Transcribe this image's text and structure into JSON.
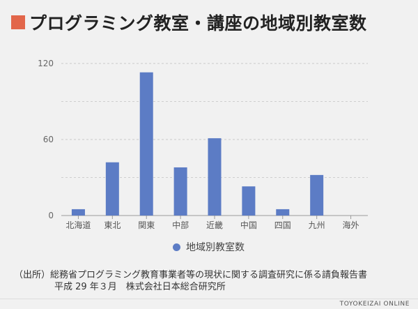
{
  "title": "プログラミング教室・講座の地域別教室数",
  "accent": "#e2664a",
  "bar_color": "#5c7cc5",
  "chart_data": {
    "type": "bar",
    "title": "プログラミング教室・講座の地域別教室数",
    "categories": [
      "北海道",
      "東北",
      "関東",
      "中部",
      "近畿",
      "中国",
      "四国",
      "九州",
      "海外"
    ],
    "series": [
      {
        "name": "地域別教室数",
        "values": [
          5,
          42,
          113,
          38,
          61,
          23,
          5,
          32,
          0
        ]
      }
    ],
    "yticks": [
      0,
      60,
      120
    ],
    "ylim": [
      0,
      120
    ],
    "grid": true,
    "legend": "bottom"
  },
  "legend_label": "地域別教室数",
  "source_line1": "（出所）総務省プログラミング教育事業者等の現状に関する調査研究に係る請負報告書",
  "source_line2": "平成 29 年３月　株式会社日本総合研究所",
  "brand": "TOYOKEIZAI ONLINE"
}
